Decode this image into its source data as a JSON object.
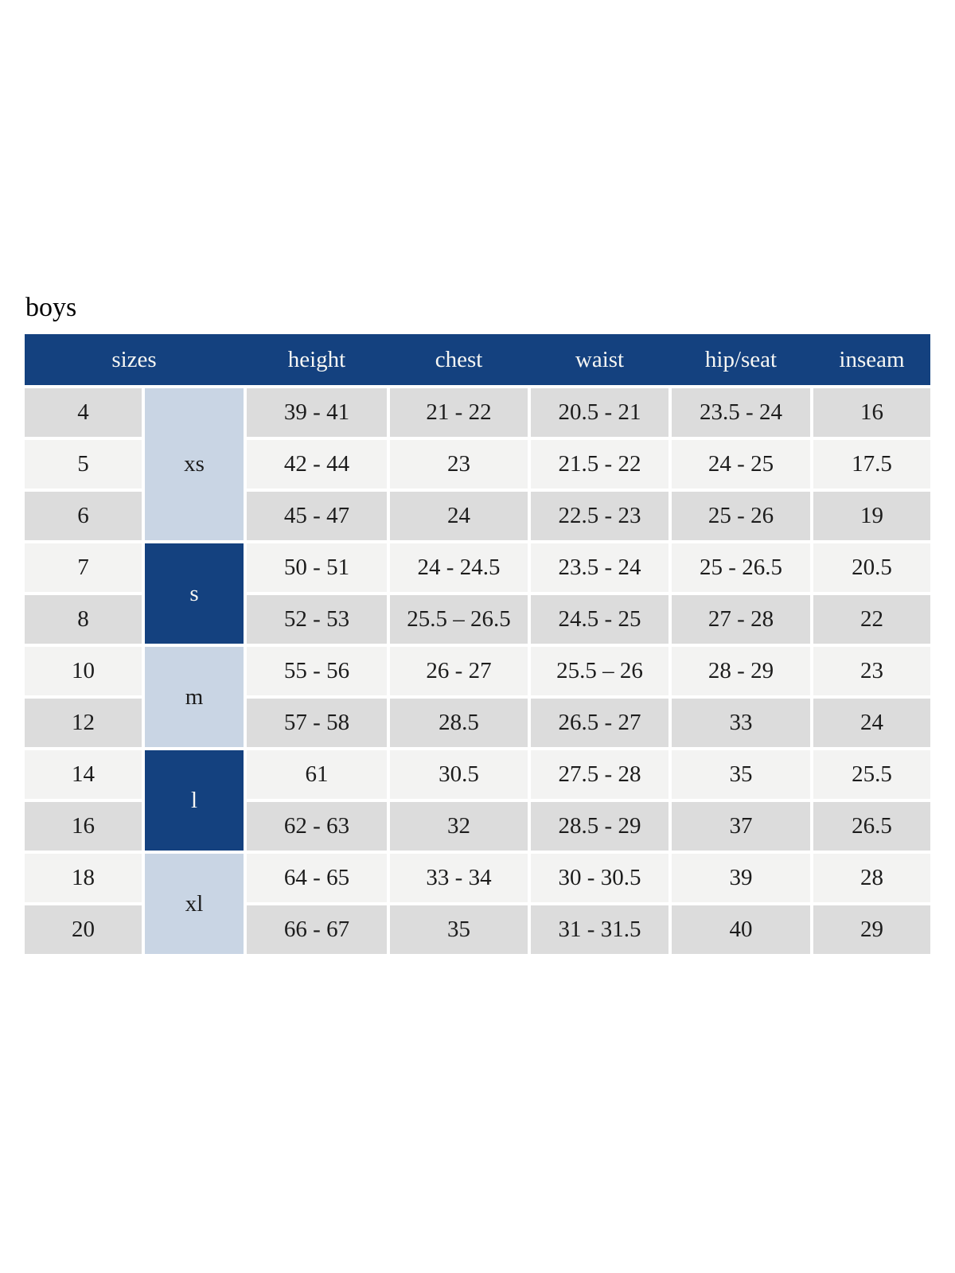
{
  "page": {
    "title": "boys"
  },
  "colors": {
    "header_navy": "#14417f",
    "group_light_blue": "#c9d5e4",
    "row_gray": "#dcdcdc",
    "row_light": "#f3f3f2"
  },
  "table": {
    "columns": [
      "sizes",
      "height",
      "chest",
      "waist",
      "hip/seat",
      "inseam"
    ],
    "size_groups": [
      {
        "label": "xs",
        "style": "light",
        "rows": 3
      },
      {
        "label": "s",
        "style": "dark",
        "rows": 2
      },
      {
        "label": "m",
        "style": "light",
        "rows": 2
      },
      {
        "label": "l",
        "style": "dark",
        "rows": 2
      },
      {
        "label": "xl",
        "style": "light",
        "rows": 2
      }
    ],
    "rows": [
      {
        "size": "4",
        "height": "39 - 41",
        "chest": "21 - 22",
        "waist": "20.5 - 21",
        "hip_seat": "23.5 - 24",
        "inseam": "16"
      },
      {
        "size": "5",
        "height": "42 - 44",
        "chest": "23",
        "waist": "21.5 - 22",
        "hip_seat": "24 - 25",
        "inseam": "17.5"
      },
      {
        "size": "6",
        "height": "45 - 47",
        "chest": "24",
        "waist": "22.5 - 23",
        "hip_seat": "25 - 26",
        "inseam": "19"
      },
      {
        "size": "7",
        "height": "50 - 51",
        "chest": "24 - 24.5",
        "waist": "23.5 - 24",
        "hip_seat": "25 - 26.5",
        "inseam": "20.5"
      },
      {
        "size": "8",
        "height": "52 - 53",
        "chest": "25.5 – 26.5",
        "waist": "24.5 - 25",
        "hip_seat": "27 - 28",
        "inseam": "22"
      },
      {
        "size": "10",
        "height": "55 - 56",
        "chest": "26 - 27",
        "waist": "25.5 – 26",
        "hip_seat": "28 - 29",
        "inseam": "23"
      },
      {
        "size": "12",
        "height": "57 - 58",
        "chest": "28.5",
        "waist": "26.5 - 27",
        "hip_seat": "33",
        "inseam": "24"
      },
      {
        "size": "14",
        "height": "61",
        "chest": "30.5",
        "waist": "27.5 - 28",
        "hip_seat": "35",
        "inseam": "25.5"
      },
      {
        "size": "16",
        "height": "62 - 63",
        "chest": "32",
        "waist": "28.5 - 29",
        "hip_seat": "37",
        "inseam": "26.5"
      },
      {
        "size": "18",
        "height": "64 - 65",
        "chest": "33 - 34",
        "waist": "30 - 30.5",
        "hip_seat": "39",
        "inseam": "28"
      },
      {
        "size": "20",
        "height": "66 - 67",
        "chest": "35",
        "waist": "31 - 31.5",
        "hip_seat": "40",
        "inseam": "29"
      }
    ]
  }
}
